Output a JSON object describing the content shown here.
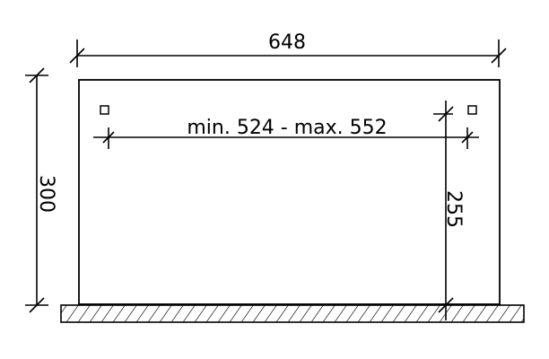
{
  "dimensions": {
    "width": "648",
    "height": "300",
    "span": "min. 524 - max. 552",
    "post_height": "255"
  },
  "colors": {
    "line": "#000000",
    "background": "#ffffff"
  }
}
